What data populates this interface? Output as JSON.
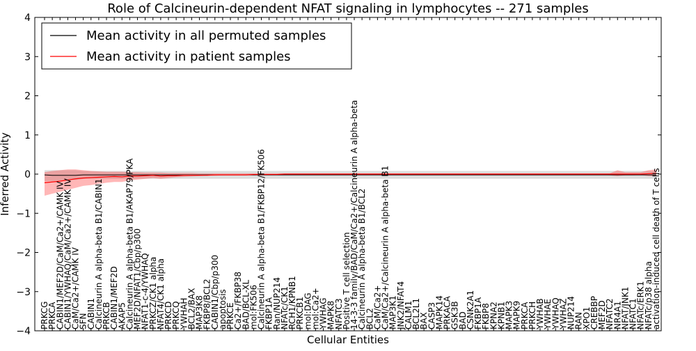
{
  "chart_data": {
    "type": "line",
    "title": "Role of Calcineurin-dependent NFAT signaling in lymphocytes -- 271 samples",
    "xlabel": "Cellular Entities",
    "ylabel": "Inferred Activity",
    "ylim": [
      -4,
      4
    ],
    "yticks": [
      -4,
      -3,
      -2,
      -1,
      0,
      1,
      2,
      3,
      4
    ],
    "ytick_labels": [
      "−4",
      "−3",
      "−2",
      "−1",
      "0",
      "1",
      "2",
      "3",
      "4"
    ],
    "legend_position": "top-left",
    "grid": false,
    "categories": [
      "PRKCG",
      "PRKCA",
      "CABIN1/MEF2D/CaM/Ca2+/CAMK IV",
      "CABIN1/YWHAQ/CaM/Ca2+/CAMK IV",
      "CaM/Ca2+/CAMK IV",
      "SFN",
      "CABIN1",
      "Calcineurin A alpha-beta B1/CABIN1",
      "PRKCB",
      "CABIN1/MEF2D",
      "AKAP5",
      "Calcineurin A alpha-beta B1/AKAP79/PKA",
      "MEF2D/NFAT1/Cbp/p300",
      "NFAT1-c-4/YWHAQ",
      "PRKCZ/CK1 alpha",
      "NFAT4/CK1 alpha",
      "PRKCD",
      "PRKCQ",
      "YWHAH",
      "BCL2/BAX",
      "MAP3K8",
      "FKBP8/BCL2",
      "CABIN1/Cbp/p300",
      "apoptosis",
      "PRKCE",
      "Ca2+/FKBP38",
      "BAD/BCL-XL",
      "mol:FK506",
      "Calcineurin A alpha-beta B1/FKBP12/FK506",
      "FKBP1A",
      "Ran/NUP214",
      "NFATc/CK1",
      "RCH1/KPNB1",
      "PRKCB1",
      "mol:DAG",
      "mol:Ca2+",
      "YWHAG",
      "MAPK8",
      "NFATC3",
      "Positive T cell selection",
      "14-3-3 family/BAD/CaM/Ca2+/Calcineurin A alpha-beta",
      "Calcineurin A alpha-beta B1/BCL2",
      "BCL2",
      "CaM/Ca2+",
      "CaM/Ca2+/Calcineurin A alpha-beta B1",
      "MAP3K1",
      "JNK2/NFAT4",
      "CALM1",
      "BCL2L1",
      "BAX",
      "CASP3",
      "MAPK14",
      "PRKACA",
      "GSK3B",
      "BAD",
      "CSNK2A1",
      "FKBP1A",
      "FKBP8",
      "KPNA2",
      "KPNB1",
      "MAPK3",
      "MAPK9",
      "PRKCA",
      "PRKCH",
      "YWHAB",
      "YWHAE",
      "YWHAQ",
      "YWHAZ",
      "NUP214",
      "RAN",
      "XPO1",
      "CREBBP",
      "MEF2D",
      "NFATC2",
      "NR4A1",
      "NFAT/JNK1",
      "NFATC1",
      "NFATc/ERK1",
      "NFATc/p38 alpha",
      "activation-induced cell death of T cells"
    ],
    "series": [
      {
        "name": "Mean activity in all permuted samples",
        "color": "#000000",
        "values": [
          -0.02,
          -0.03,
          -0.03,
          -0.03,
          -0.03,
          -0.02,
          -0.02,
          -0.02,
          -0.02,
          -0.02,
          -0.02,
          -0.02,
          -0.02,
          -0.02,
          -0.02,
          -0.02,
          -0.02,
          -0.02,
          -0.02,
          -0.02,
          -0.02,
          -0.02,
          -0.02,
          -0.02,
          -0.02,
          -0.02,
          -0.02,
          -0.02,
          -0.02,
          -0.02,
          -0.02,
          -0.02,
          -0.02,
          -0.02,
          -0.02,
          -0.02,
          -0.02,
          -0.02,
          -0.02,
          -0.02,
          -0.02,
          -0.02,
          -0.02,
          -0.02,
          -0.02,
          -0.02,
          -0.02,
          -0.02,
          -0.02,
          -0.02,
          -0.02,
          -0.02,
          -0.02,
          -0.02,
          -0.02,
          -0.02,
          -0.02,
          -0.02,
          -0.02,
          -0.02,
          -0.02,
          -0.02,
          -0.02,
          -0.02,
          -0.02,
          -0.02,
          -0.02,
          -0.02,
          -0.02,
          -0.02,
          -0.02,
          -0.02,
          -0.02,
          -0.02,
          -0.02,
          -0.02,
          -0.02,
          -0.02,
          -0.02,
          -0.02
        ],
        "band_low": [
          -0.18,
          -0.18,
          -0.16,
          -0.15,
          -0.15,
          -0.12,
          -0.12,
          -0.12,
          -0.12,
          -0.12,
          -0.12,
          -0.12,
          -0.12,
          -0.12,
          -0.12,
          -0.12,
          -0.12,
          -0.12,
          -0.12,
          -0.12,
          -0.12,
          -0.12,
          -0.12,
          -0.12,
          -0.12,
          -0.12,
          -0.12,
          -0.12,
          -0.12,
          -0.12,
          -0.12,
          -0.12,
          -0.12,
          -0.12,
          -0.12,
          -0.12,
          -0.12,
          -0.12,
          -0.12,
          -0.12,
          -0.12,
          -0.12,
          -0.12,
          -0.12,
          -0.12,
          -0.12,
          -0.12,
          -0.12,
          -0.12,
          -0.12,
          -0.12,
          -0.12,
          -0.12,
          -0.12,
          -0.12,
          -0.12,
          -0.12,
          -0.12,
          -0.12,
          -0.12,
          -0.12,
          -0.12,
          -0.12,
          -0.12,
          -0.12,
          -0.12,
          -0.12,
          -0.12,
          -0.12,
          -0.12,
          -0.12,
          -0.12,
          -0.12,
          -0.12,
          -0.12,
          -0.12,
          -0.12,
          -0.12,
          -0.12,
          -0.12
        ],
        "band_high": [
          0.1,
          0.1,
          0.1,
          0.1,
          0.1,
          0.08,
          0.08,
          0.08,
          0.08,
          0.08,
          0.08,
          0.08,
          0.08,
          0.08,
          0.08,
          0.08,
          0.08,
          0.08,
          0.08,
          0.08,
          0.08,
          0.08,
          0.08,
          0.08,
          0.08,
          0.08,
          0.08,
          0.08,
          0.08,
          0.08,
          0.08,
          0.08,
          0.08,
          0.08,
          0.08,
          0.08,
          0.08,
          0.08,
          0.08,
          0.08,
          0.08,
          0.08,
          0.08,
          0.08,
          0.08,
          0.08,
          0.08,
          0.08,
          0.08,
          0.08,
          0.08,
          0.08,
          0.08,
          0.08,
          0.08,
          0.08,
          0.08,
          0.08,
          0.08,
          0.08,
          0.08,
          0.08,
          0.08,
          0.08,
          0.08,
          0.08,
          0.08,
          0.08,
          0.08,
          0.08,
          0.08,
          0.08,
          0.08,
          0.08,
          0.08,
          0.08,
          0.08,
          0.08,
          0.08,
          0.08
        ]
      },
      {
        "name": "Mean activity in patient samples",
        "color": "#ff0000",
        "values": [
          -0.22,
          -0.2,
          -0.18,
          -0.15,
          -0.12,
          -0.1,
          -0.09,
          -0.08,
          -0.07,
          -0.06,
          -0.07,
          -0.05,
          -0.05,
          -0.04,
          -0.03,
          -0.05,
          -0.04,
          -0.04,
          -0.03,
          -0.03,
          -0.03,
          -0.03,
          -0.02,
          -0.02,
          -0.02,
          -0.02,
          -0.02,
          -0.01,
          -0.01,
          -0.01,
          -0.01,
          0.0,
          0.0,
          0.0,
          0.0,
          0.0,
          0.0,
          0.0,
          0.0,
          0.0,
          0.0,
          0.0,
          0.0,
          0.0,
          0.0,
          0.0,
          0.0,
          0.0,
          0.0,
          0.0,
          0.0,
          0.0,
          0.0,
          0.0,
          0.0,
          0.0,
          0.0,
          0.0,
          0.0,
          0.0,
          0.0,
          0.0,
          0.0,
          0.0,
          0.0,
          0.0,
          0.0,
          0.0,
          0.0,
          0.0,
          0.0,
          0.0,
          0.0,
          0.0,
          0.0,
          0.0,
          0.0,
          0.0,
          0.01,
          0.02
        ],
        "band_low": [
          -0.55,
          -0.5,
          -0.45,
          -0.4,
          -0.35,
          -0.3,
          -0.28,
          -0.25,
          -0.22,
          -0.2,
          -0.2,
          -0.16,
          -0.14,
          -0.12,
          -0.1,
          -0.12,
          -0.1,
          -0.08,
          -0.07,
          -0.06,
          -0.05,
          -0.04,
          -0.04,
          -0.03,
          -0.03,
          -0.03,
          -0.03,
          -0.03,
          -0.02,
          -0.02,
          -0.02,
          -0.02,
          -0.02,
          -0.02,
          -0.02,
          -0.02,
          -0.02,
          -0.02,
          -0.02,
          -0.02,
          -0.02,
          -0.02,
          -0.02,
          -0.02,
          -0.02,
          -0.02,
          -0.02,
          -0.02,
          -0.02,
          -0.02,
          -0.02,
          -0.02,
          -0.02,
          -0.02,
          -0.02,
          -0.02,
          -0.02,
          -0.02,
          -0.02,
          -0.02,
          -0.02,
          -0.02,
          -0.02,
          -0.02,
          -0.02,
          -0.02,
          -0.02,
          -0.02,
          -0.02,
          -0.02,
          -0.02,
          -0.02,
          -0.02,
          -0.03,
          -0.05,
          -0.03,
          -0.03,
          -0.02,
          -0.05,
          -0.05
        ],
        "band_high": [
          0.05,
          0.08,
          0.1,
          0.12,
          0.12,
          0.1,
          0.08,
          0.07,
          0.06,
          0.06,
          0.06,
          0.05,
          0.05,
          0.04,
          0.04,
          0.04,
          0.03,
          0.03,
          0.03,
          0.03,
          0.02,
          0.02,
          0.02,
          0.02,
          0.02,
          0.02,
          0.02,
          0.02,
          0.02,
          0.02,
          0.02,
          0.02,
          0.02,
          0.02,
          0.02,
          0.02,
          0.02,
          0.02,
          0.02,
          0.02,
          0.02,
          0.02,
          0.02,
          0.02,
          0.02,
          0.02,
          0.02,
          0.02,
          0.02,
          0.02,
          0.02,
          0.02,
          0.02,
          0.02,
          0.02,
          0.02,
          0.02,
          0.02,
          0.02,
          0.02,
          0.02,
          0.02,
          0.02,
          0.02,
          0.02,
          0.02,
          0.02,
          0.02,
          0.02,
          0.02,
          0.02,
          0.02,
          0.02,
          0.02,
          0.1,
          0.05,
          0.05,
          0.05,
          0.1,
          0.12
        ]
      }
    ]
  }
}
